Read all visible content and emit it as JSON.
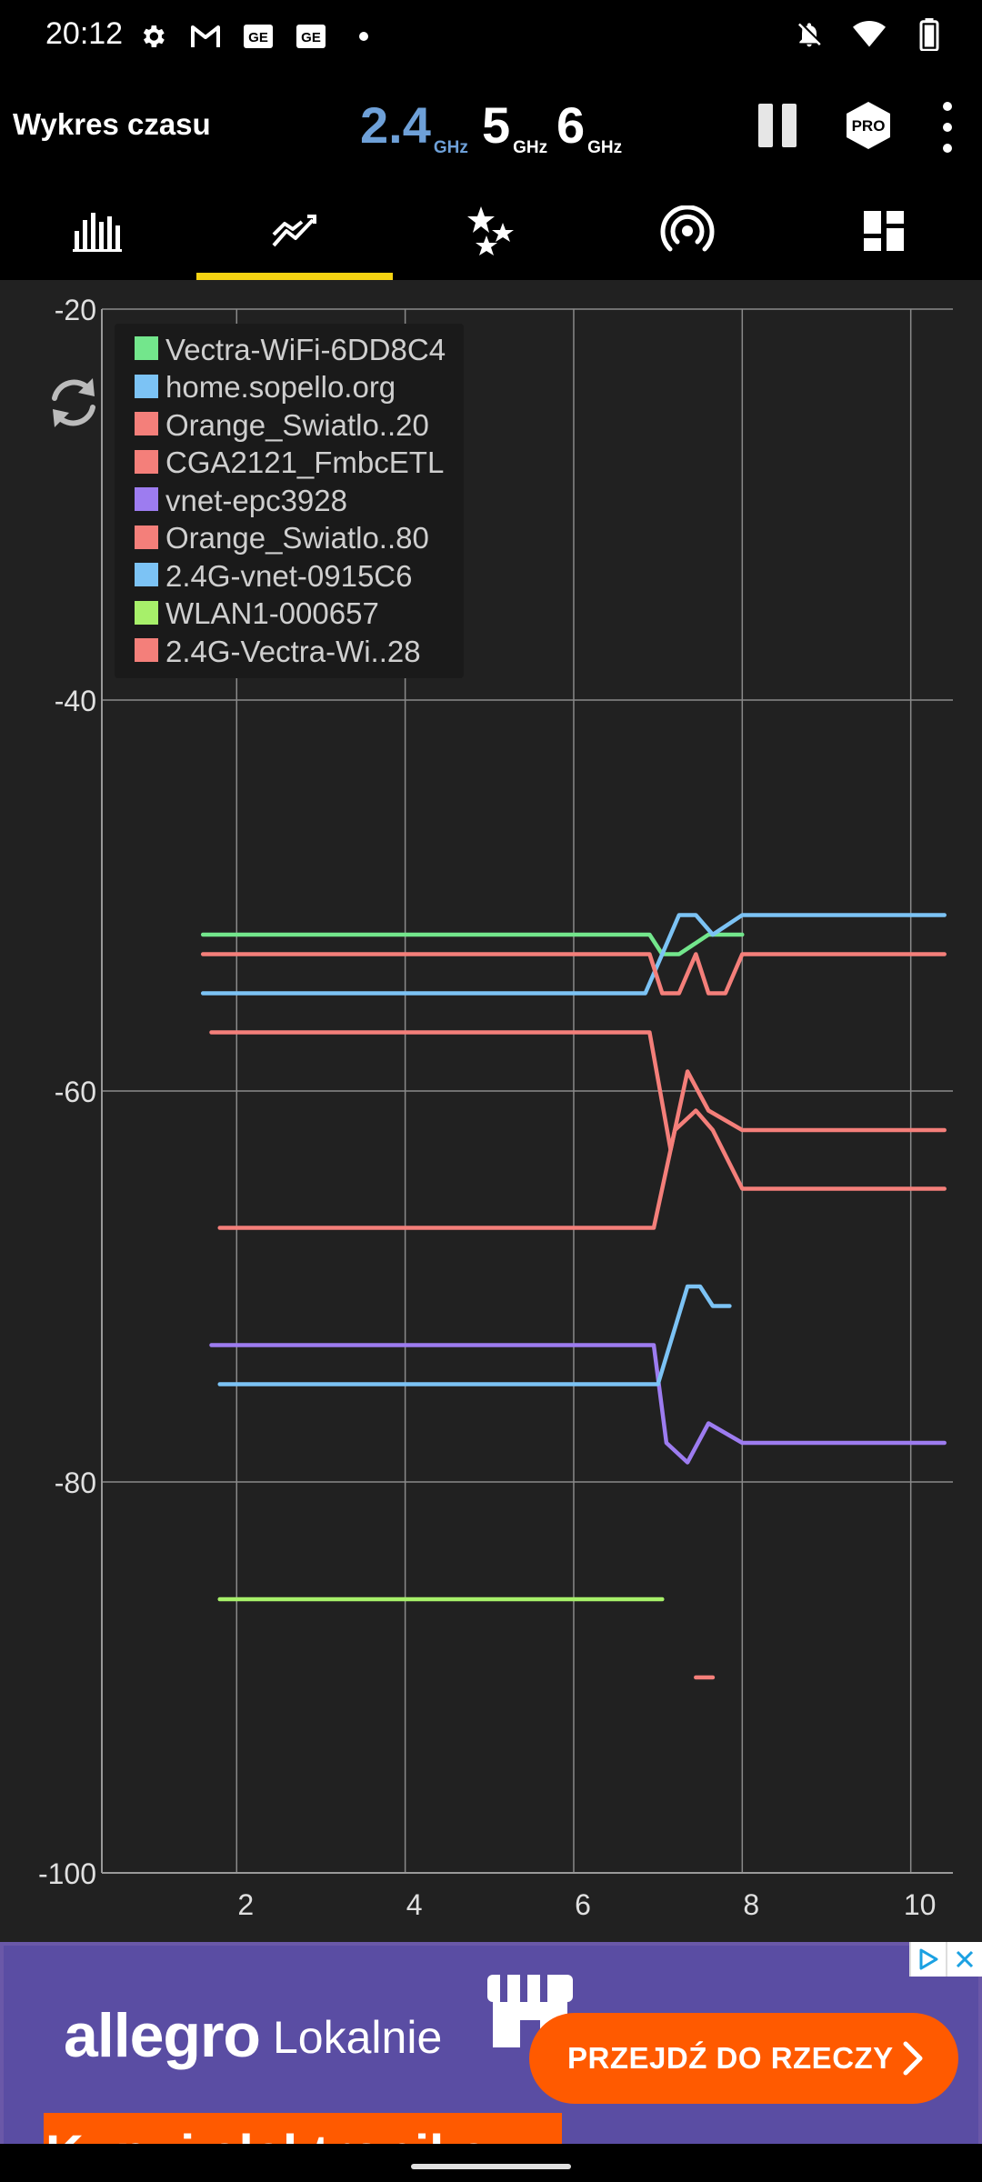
{
  "status_bar": {
    "time": "20:12",
    "left_icons": [
      "gear-icon",
      "gmail-icon",
      "ge-app-icon",
      "ge-app-icon",
      "dot-icon"
    ],
    "right_icons": [
      "bell-off-icon",
      "wifi-icon",
      "battery-icon"
    ]
  },
  "app_bar": {
    "title": "Wykres czasu",
    "bands": [
      {
        "num": "2.4",
        "unit": "GHz",
        "active": true
      },
      {
        "num": "5",
        "unit": "GHz",
        "active": false
      },
      {
        "num": "6",
        "unit": "GHz",
        "active": false
      }
    ],
    "pro_label": "PRO"
  },
  "tabs": [
    {
      "icon": "channel-graph-icon",
      "selected": false
    },
    {
      "icon": "time-graph-icon",
      "selected": true
    },
    {
      "icon": "channel-rating-icon",
      "selected": false
    },
    {
      "icon": "access-points-icon",
      "selected": false
    },
    {
      "icon": "dashboard-icon",
      "selected": false
    }
  ],
  "chart_data": {
    "type": "line",
    "xlabel": "",
    "ylabel": "",
    "xlim": [
      0.4,
      10.5
    ],
    "ylim": [
      -100,
      -20
    ],
    "x_ticks": [
      2,
      4,
      6,
      8,
      10
    ],
    "y_ticks": [
      -20,
      -40,
      -60,
      -80,
      -100
    ],
    "grid": true,
    "legend_position": "top-left",
    "series": [
      {
        "name": "Vectra-WiFi-6DD8C4",
        "color": "#73e68c",
        "points": [
          [
            1.6,
            -52
          ],
          [
            6.9,
            -52
          ],
          [
            7.05,
            -53
          ],
          [
            7.25,
            -53
          ],
          [
            7.6,
            -52
          ],
          [
            8.0,
            -52
          ]
        ]
      },
      {
        "name": "home.sopello.org",
        "color": "#7cc3f5",
        "points": [
          [
            1.6,
            -55
          ],
          [
            6.85,
            -55
          ],
          [
            7.05,
            -53
          ],
          [
            7.25,
            -51
          ],
          [
            7.45,
            -51
          ],
          [
            7.65,
            -52
          ],
          [
            8.0,
            -51
          ],
          [
            10.4,
            -51
          ]
        ]
      },
      {
        "name": "Orange_Swiatlo..20",
        "color": "#f47f7a",
        "points": [
          [
            1.6,
            -53
          ],
          [
            6.9,
            -53
          ],
          [
            7.05,
            -55
          ],
          [
            7.25,
            -55
          ],
          [
            7.45,
            -53
          ],
          [
            7.6,
            -55
          ],
          [
            7.8,
            -55
          ],
          [
            8.0,
            -53
          ],
          [
            10.4,
            -53
          ]
        ]
      },
      {
        "name": "CGA2121_FmbcETL",
        "color": "#f47f7a",
        "points": [
          [
            1.7,
            -57
          ],
          [
            6.9,
            -57
          ],
          [
            7.15,
            -63
          ],
          [
            7.35,
            -59
          ],
          [
            7.6,
            -61
          ],
          [
            8.0,
            -62
          ],
          [
            10.4,
            -62
          ]
        ]
      },
      {
        "name": "vnet-epc3928",
        "color": "#9d7cf0",
        "points": [
          [
            1.7,
            -73
          ],
          [
            6.95,
            -73
          ],
          [
            7.1,
            -78
          ],
          [
            7.35,
            -79
          ],
          [
            7.6,
            -77
          ],
          [
            8.0,
            -78
          ],
          [
            10.4,
            -78
          ]
        ]
      },
      {
        "name": "Orange_Swiatlo..80",
        "color": "#f47f7a",
        "points": [
          [
            1.8,
            -67
          ],
          [
            6.95,
            -67
          ],
          [
            7.2,
            -62
          ],
          [
            7.45,
            -61
          ],
          [
            7.65,
            -62
          ],
          [
            8.0,
            -65
          ],
          [
            10.4,
            -65
          ]
        ]
      },
      {
        "name": "2.4G-vnet-0915C6",
        "color": "#7cc3f5",
        "points": [
          [
            1.8,
            -75
          ],
          [
            7.0,
            -75
          ],
          [
            7.35,
            -70
          ],
          [
            7.5,
            -70
          ],
          [
            7.65,
            -71
          ],
          [
            7.85,
            -71
          ]
        ]
      },
      {
        "name": "WLAN1-000657",
        "color": "#a7f06a",
        "points": [
          [
            1.8,
            -86
          ],
          [
            7.05,
            -86
          ]
        ]
      },
      {
        "name": "2.4G-Vectra-Wi..28",
        "color": "#f47f7a",
        "points": [
          [
            7.45,
            -90
          ],
          [
            7.65,
            -90
          ]
        ]
      }
    ]
  },
  "ad": {
    "brand": "allegro",
    "brand_sub": "Lokalnie",
    "cta_label": "PRZEJDŹ DO RZECZY",
    "strip_text": "Kupuj elektronikę",
    "badges": [
      "ad-choices-icon",
      "close-icon"
    ]
  }
}
